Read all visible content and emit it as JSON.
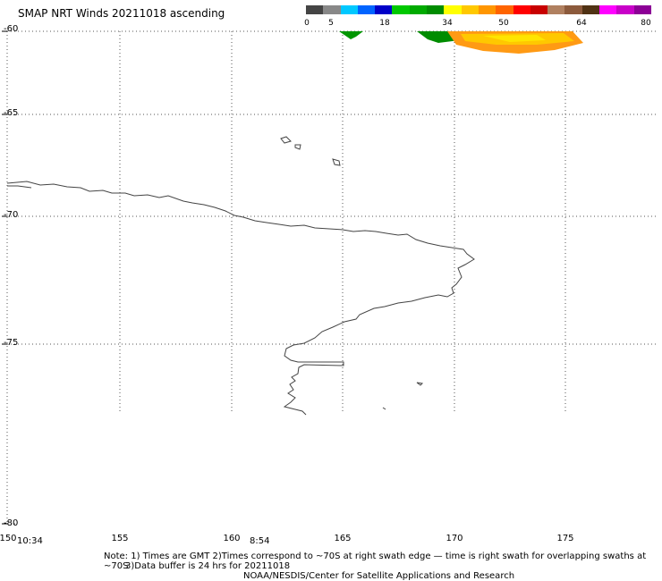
{
  "title": "SMAP NRT Winds 20211018 ascending",
  "scale": {
    "colors": [
      "#444444",
      "#888888",
      "#00c8ff",
      "#0064ff",
      "#0000c8",
      "#00c800",
      "#00aa00",
      "#008c00",
      "#ffff00",
      "#ffc800",
      "#ff9600",
      "#ff6400",
      "#ff0000",
      "#c80000",
      "#b08060",
      "#8c5a3c",
      "#503214",
      "#ff00ff",
      "#c800c8",
      "#8c0096"
    ],
    "labels": [
      "0",
      "5",
      "18",
      "34",
      "50",
      "64",
      "80"
    ]
  },
  "map": {
    "lat_labels": [
      "-60",
      "-65",
      "-70",
      "-75",
      "-80"
    ],
    "lon_labels": [
      "150",
      "155",
      "160",
      "165",
      "170",
      "175"
    ]
  },
  "times": [
    "10:34",
    "8:54"
  ],
  "notes": {
    "line1": "Note: 1) Times are GMT 2)Times correspond to ~70S at right swath edge — time is right swath for overlapping swaths at ~70S",
    "line2": "3)Data buffer is 24 hrs for 20211018",
    "line3": "NOAA/NESDIS/Center for Satellite Applications and Research"
  }
}
